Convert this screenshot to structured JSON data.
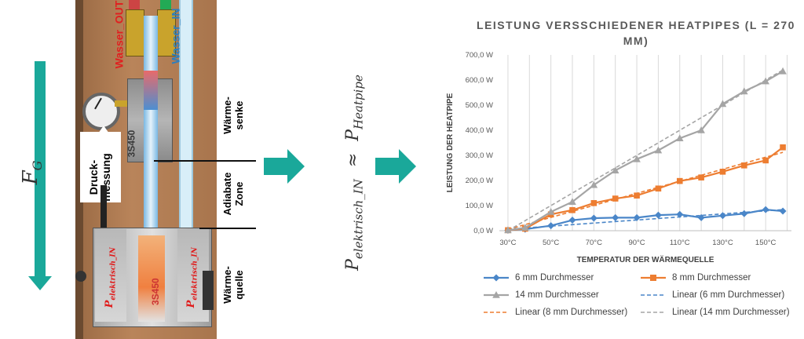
{
  "left": {
    "gravity_label": "F",
    "gravity_sub": "G",
    "water_out": "Wasser_OUT",
    "water_in": "Wasser_IN",
    "block_text": "3S450",
    "source_text": "3S450",
    "pressure_label_line1": "Druck-",
    "pressure_label_line2": "messung",
    "zone_sink_line1": "Wärme-",
    "zone_sink_line2": "senke",
    "zone_adiabat_line1": "Adiabate",
    "zone_adiabat_line2": "Zone",
    "zone_source_line1": "Wärme-",
    "zone_source_line2": "quelle",
    "heater_label": "P",
    "heater_sub": "elektrisch_IN"
  },
  "formula": {
    "lhs": "P",
    "lhs_sub": "elektrisch_IN",
    "approx": "≈",
    "rhs": "P",
    "rhs_sub": "Heatpipe"
  },
  "colors": {
    "teal": "#1aa89a",
    "series_6mm": "#4a86c8",
    "series_8mm": "#ed7d31",
    "series_14mm": "#a5a5a5",
    "grid": "#d9d9d9"
  },
  "chart_data": {
    "type": "line",
    "title": "LEISTUNG VERSSCHIEDENER HEATPIPES (L = 270 MM)",
    "xlabel": "TEMPERATUR DER WÄRMEQUELLE",
    "ylabel": "LEISTUNG DER HEATPIPE",
    "xlim": [
      26,
      162
    ],
    "ylim": [
      0,
      700
    ],
    "y_ticks": [
      "0,0 W",
      "100,0 W",
      "200,0 W",
      "300,0 W",
      "400,0 W",
      "500,0 W",
      "600,0 W",
      "700,0 W"
    ],
    "y_tick_values": [
      0,
      100,
      200,
      300,
      400,
      500,
      600,
      700
    ],
    "x_ticks": [
      "30°C",
      "50°C",
      "70°C",
      "90°C",
      "110°C",
      "130°C",
      "150°C"
    ],
    "x_tick_values": [
      30,
      50,
      70,
      90,
      110,
      130,
      150
    ],
    "grid": "vertical",
    "legend_position": "bottom",
    "series": [
      {
        "name": "6 mm Durchmesser",
        "marker": "diamond",
        "color": "#4a86c8",
        "x": [
          30,
          38,
          50,
          60,
          70,
          80,
          90,
          100,
          110,
          120,
          130,
          140,
          150,
          158
        ],
        "y": [
          2,
          6,
          20,
          42,
          50,
          52,
          52,
          62,
          65,
          52,
          60,
          68,
          84,
          78
        ]
      },
      {
        "name": "8 mm Durchmesser",
        "marker": "square",
        "color": "#ed7d31",
        "x": [
          30,
          38,
          50,
          60,
          70,
          80,
          90,
          100,
          110,
          120,
          130,
          140,
          150,
          158
        ],
        "y": [
          2,
          8,
          65,
          82,
          110,
          128,
          140,
          168,
          198,
          212,
          235,
          260,
          280,
          332
        ]
      },
      {
        "name": "14 mm Durchmesser",
        "marker": "triangle",
        "color": "#a5a5a5",
        "x": [
          30,
          38,
          50,
          60,
          70,
          80,
          90,
          100,
          110,
          120,
          130,
          140,
          150,
          158
        ],
        "y": [
          2,
          12,
          75,
          115,
          182,
          240,
          285,
          320,
          368,
          400,
          505,
          555,
          595,
          635
        ]
      }
    ],
    "trendlines": [
      {
        "name": "Linear (6 mm Durchmesser)",
        "color": "#4a86c8",
        "x": [
          30,
          158
        ],
        "y": [
          6,
          84
        ]
      },
      {
        "name": "Linear (8 mm Durchmesser)",
        "color": "#ed7d31",
        "x": [
          30,
          158
        ],
        "y": [
          5,
          312
        ]
      },
      {
        "name": "Linear (14 mm Durchmesser)",
        "color": "#a5a5a5",
        "x": [
          30,
          158
        ],
        "y": [
          0,
          640
        ]
      }
    ]
  }
}
